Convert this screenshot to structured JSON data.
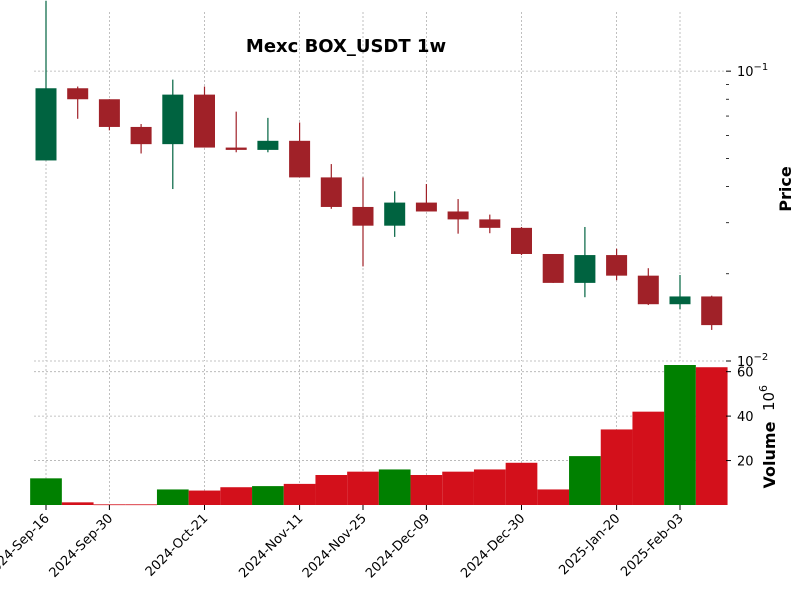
{
  "chart_data": {
    "type": "candlestick",
    "title": "Mexc BOX_USDT 1w",
    "price_axis": {
      "label": "Price",
      "scale": "log",
      "ylim": [
        0.01,
        0.16
      ],
      "ticks": [
        {
          "value": 0.1,
          "base": "10",
          "exp": "−1"
        },
        {
          "value": 0.01,
          "base": "10",
          "exp": "−2"
        }
      ]
    },
    "volume_axis": {
      "label": "Volume",
      "multiplier_base": "10",
      "multiplier_exp": "6",
      "ylim": [
        0,
        63
      ],
      "ticks": [
        20,
        40,
        60
      ]
    },
    "x_tick_labels": [
      {
        "index": 0,
        "label": "2024-Sep-16"
      },
      {
        "index": 2,
        "label": "2024-Sep-30"
      },
      {
        "index": 5,
        "label": "2024-Oct-21"
      },
      {
        "index": 8,
        "label": "2024-Nov-11"
      },
      {
        "index": 10,
        "label": "2024-Nov-25"
      },
      {
        "index": 12,
        "label": "2024-Dec-09"
      },
      {
        "index": 15,
        "label": "2024-Dec-30"
      },
      {
        "index": 18,
        "label": "2025-Jan-20"
      },
      {
        "index": 20,
        "label": "2025-Feb-03"
      }
    ],
    "colors": {
      "up": "#006340",
      "down": "#A02128",
      "vol_up": "#008000",
      "vol_down": "#D3101B"
    },
    "candles": [
      {
        "open": 0.0492,
        "high": 0.175,
        "low": 0.0492,
        "close": 0.0873,
        "volume": 12.0
      },
      {
        "open": 0.0873,
        "high": 0.0885,
        "low": 0.0685,
        "close": 0.08,
        "volume": 1.2
      },
      {
        "open": 0.08,
        "high": 0.08,
        "low": 0.0625,
        "close": 0.0642,
        "volume": 0.3
      },
      {
        "open": 0.0642,
        "high": 0.0657,
        "low": 0.052,
        "close": 0.056,
        "volume": 0.3
      },
      {
        "open": 0.056,
        "high": 0.0935,
        "low": 0.0392,
        "close": 0.083,
        "volume": 7.0
      },
      {
        "open": 0.083,
        "high": 0.0885,
        "low": 0.0545,
        "close": 0.0545,
        "volume": 6.5
      },
      {
        "open": 0.0545,
        "high": 0.0725,
        "low": 0.0525,
        "close": 0.0535,
        "volume": 8.0
      },
      {
        "open": 0.0535,
        "high": 0.069,
        "low": 0.0525,
        "close": 0.0575,
        "volume": 8.5
      },
      {
        "open": 0.0575,
        "high": 0.0665,
        "low": 0.043,
        "close": 0.043,
        "volume": 9.5
      },
      {
        "open": 0.043,
        "high": 0.0478,
        "low": 0.0335,
        "close": 0.034,
        "volume": 13.5
      },
      {
        "open": 0.034,
        "high": 0.043,
        "low": 0.0212,
        "close": 0.0293,
        "volume": 15.0
      },
      {
        "open": 0.0293,
        "high": 0.0385,
        "low": 0.0268,
        "close": 0.0352,
        "volume": 16.0
      },
      {
        "open": 0.0352,
        "high": 0.0408,
        "low": 0.0328,
        "close": 0.0328,
        "volume": 13.5
      },
      {
        "open": 0.0328,
        "high": 0.0362,
        "low": 0.0275,
        "close": 0.0308,
        "volume": 15.0
      },
      {
        "open": 0.0308,
        "high": 0.032,
        "low": 0.0276,
        "close": 0.0288,
        "volume": 16.0
      },
      {
        "open": 0.0288,
        "high": 0.029,
        "low": 0.0232,
        "close": 0.0234,
        "volume": 19.0
      },
      {
        "open": 0.0234,
        "high": 0.0234,
        "low": 0.0186,
        "close": 0.0186,
        "volume": 7.0
      },
      {
        "open": 0.0186,
        "high": 0.029,
        "low": 0.0166,
        "close": 0.0232,
        "volume": 22.0
      },
      {
        "open": 0.0232,
        "high": 0.0244,
        "low": 0.019,
        "close": 0.0197,
        "volume": 34.0
      },
      {
        "open": 0.0197,
        "high": 0.0209,
        "low": 0.0156,
        "close": 0.0157,
        "volume": 42.0
      },
      {
        "open": 0.0157,
        "high": 0.0198,
        "low": 0.0151,
        "close": 0.0167,
        "volume": 63.0
      },
      {
        "open": 0.0167,
        "high": 0.0168,
        "low": 0.0128,
        "close": 0.0133,
        "volume": 62.0
      }
    ]
  }
}
